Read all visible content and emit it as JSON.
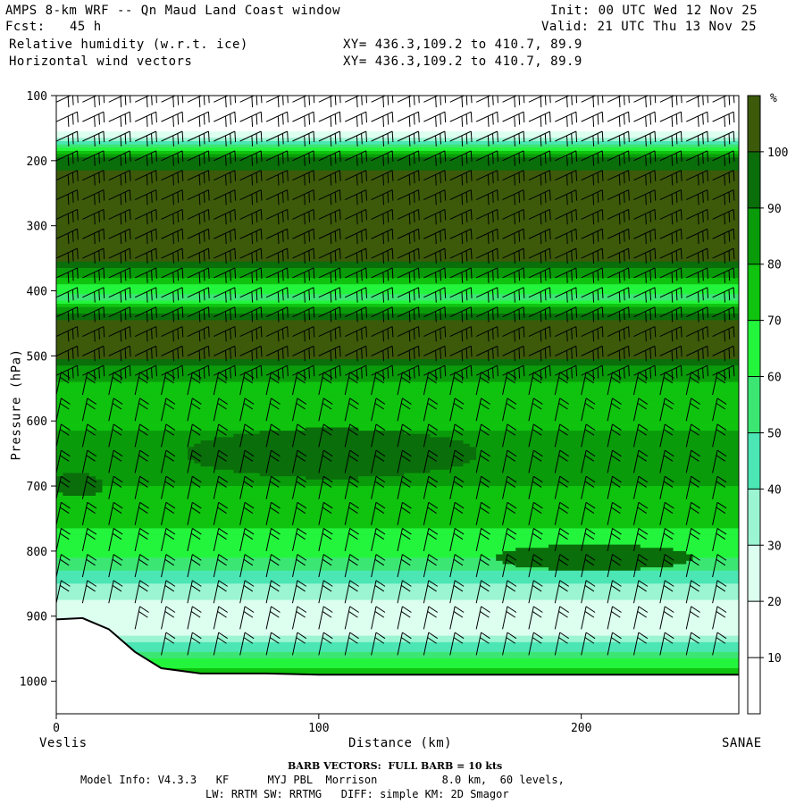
{
  "header": {
    "title": "AMPS 8-km WRF -- Qn Maud Land Coast window",
    "fcst_label": "Fcst:",
    "fcst_value": "45 h",
    "init": "Init: 00 UTC Wed 12 Nov 25",
    "valid": "Valid: 21 UTC Thu 13 Nov 25",
    "field1": "Relative humidity (w.r.t. ice)",
    "field2": "Horizontal wind vectors",
    "xy1": "XY= 436.3,109.2 to 410.7, 89.9",
    "xy2": "XY= 436.3,109.2 to 410.7, 89.9"
  },
  "footer": {
    "barb": "BARB VECTORS:  FULL BARB = 10 kts",
    "model_line1": "Model Info: V4.3.3   KF      MYJ PBL  Morrison          8.0 km,  60 levels,",
    "model_line2": "LW: RRTM SW: RRTMG   DIFF: simple KM: 2D Smagor"
  },
  "colors": {
    "rh_10": "#ffffff",
    "rh_20": "#ffffff",
    "rh_30": "#dcfff0",
    "rh_40": "#9bf5d2",
    "rh_50": "#4be6b4",
    "rh_60": "#3ce673",
    "rh_70": "#23f53c",
    "rh_80": "#0fc30f",
    "rh_90": "#0a9b0a",
    "rh_100": "#0a6e0a",
    "rh_max": "#3c5a0a",
    "terrain": "#ffffff"
  },
  "chart_data": {
    "type": "heatmap",
    "title": "Relative humidity (w.r.t. ice)",
    "xlabel": "Distance (km)",
    "ylabel": "Pressure (hPa)",
    "xlim": [
      0,
      260
    ],
    "ylim": [
      1050,
      100
    ],
    "x_ticks": [
      0,
      100,
      200
    ],
    "y_ticks": [
      100,
      200,
      300,
      400,
      500,
      600,
      700,
      800,
      900,
      1000
    ],
    "x_endpoint_labels": {
      "left": "Veslis",
      "right": "SANAE"
    },
    "colorbar": {
      "unit": "%",
      "levels": [
        10,
        20,
        30,
        40,
        50,
        60,
        70,
        80,
        90,
        100
      ]
    },
    "rh_profiles": [
      {
        "pressure": 100,
        "rh": 5
      },
      {
        "pressure": 150,
        "rh": 12
      },
      {
        "pressure": 170,
        "rh": 35
      },
      {
        "pressure": 185,
        "rh": 75
      },
      {
        "pressure": 200,
        "rh": 98
      },
      {
        "pressure": 250,
        "rh": 105
      },
      {
        "pressure": 350,
        "rh": 103
      },
      {
        "pressure": 370,
        "rh": 88
      },
      {
        "pressure": 390,
        "rh": 72
      },
      {
        "pressure": 410,
        "rh": 55
      },
      {
        "pressure": 430,
        "rh": 85
      },
      {
        "pressure": 445,
        "rh": 102
      },
      {
        "pressure": 500,
        "rh": 103
      },
      {
        "pressure": 520,
        "rh": 88
      },
      {
        "pressure": 550,
        "rh": 75
      },
      {
        "pressure": 600,
        "rh": 78
      },
      {
        "pressure": 650,
        "rh": 85
      },
      {
        "pressure": 700,
        "rh": 80
      },
      {
        "pressure": 750,
        "rh": 72
      },
      {
        "pressure": 800,
        "rh": 65
      },
      {
        "pressure": 850,
        "rh": 40
      },
      {
        "pressure": 900,
        "rh": 20
      },
      {
        "pressure": 930,
        "rh": 30
      },
      {
        "pressure": 960,
        "rh": 55
      },
      {
        "pressure": 985,
        "rh": 75
      }
    ],
    "terrain": [
      {
        "distance": 0,
        "pressure": 905
      },
      {
        "distance": 10,
        "pressure": 903
      },
      {
        "distance": 20,
        "pressure": 920
      },
      {
        "distance": 30,
        "pressure": 955
      },
      {
        "distance": 40,
        "pressure": 980
      },
      {
        "distance": 55,
        "pressure": 988
      },
      {
        "distance": 80,
        "pressure": 988
      },
      {
        "distance": 100,
        "pressure": 990
      },
      {
        "distance": 260,
        "pressure": 990
      }
    ],
    "moist_cores": [
      {
        "center_distance": 105,
        "center_pressure": 650,
        "half_width_km": 55,
        "half_depth_hpa": 38,
        "rh": 95
      },
      {
        "center_distance": 205,
        "center_pressure": 810,
        "half_width_km": 38,
        "half_depth_hpa": 20,
        "rh": 92
      },
      {
        "center_distance": 8,
        "center_pressure": 698,
        "half_width_km": 10,
        "half_depth_hpa": 18,
        "rh": 92
      }
    ],
    "wind_barb_distances": [
      0,
      10,
      20,
      30,
      40,
      50,
      60,
      70,
      80,
      90,
      100,
      110,
      120,
      130,
      140,
      150,
      160,
      170,
      180,
      190,
      200,
      210,
      220,
      230,
      240,
      250
    ],
    "wind_barb_pressures": [
      110,
      140,
      170,
      200,
      230,
      260,
      290,
      320,
      350,
      380,
      410,
      440,
      470,
      500,
      530,
      560,
      600,
      640,
      680,
      720,
      760,
      800,
      840,
      880,
      920,
      960
    ]
  }
}
